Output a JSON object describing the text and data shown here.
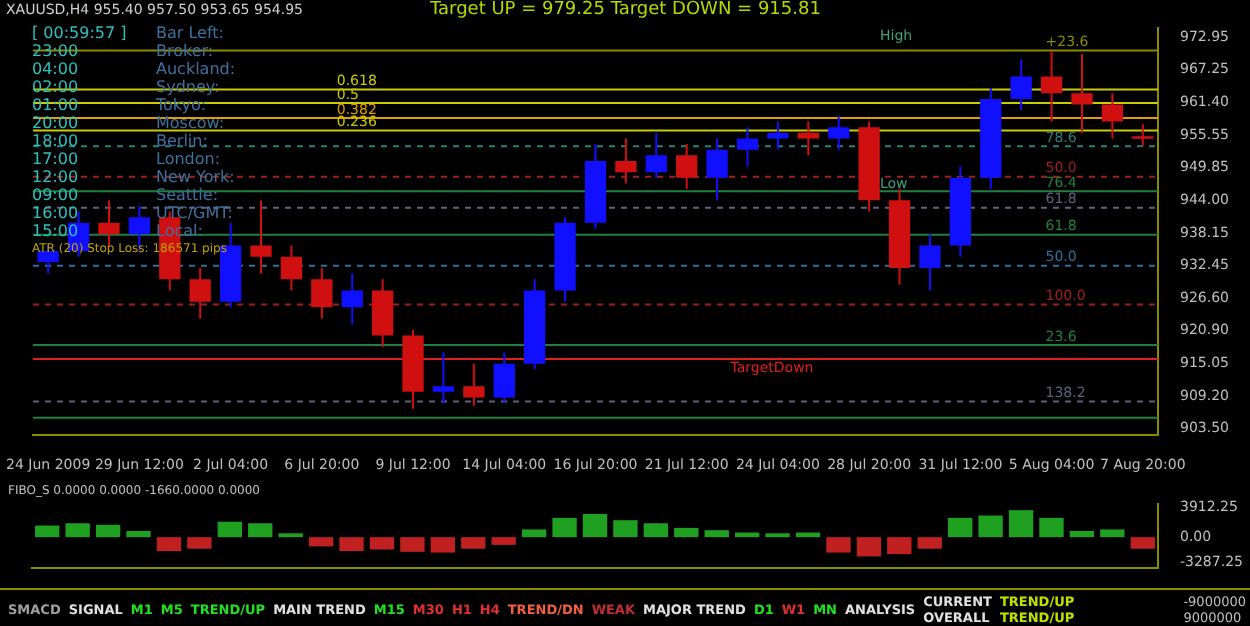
{
  "chart_data": [
    {
      "type": "candlestick",
      "title": "Target UP = 979.25     Target DOWN = 915.81",
      "subtitle": "XAUUSD,H4  955.40 957.50 953.65 954.95",
      "categories": [
        "24 Jun 2009",
        null,
        null,
        "29 Jun 12:00",
        null,
        null,
        "2 Jul 04:00",
        null,
        null,
        "6 Jul 20:00",
        null,
        null,
        "9 Jul 12:00",
        null,
        null,
        "14 Jul 04:00",
        null,
        null,
        "16 Jul 20:00",
        null,
        null,
        "21 Jul 12:00",
        null,
        null,
        "24 Jul 04:00",
        null,
        null,
        "28 Jul 20:00",
        null,
        null,
        "31 Jul 12:00",
        null,
        null,
        "5 Aug 04:00",
        null,
        null,
        "7 Aug 20:00"
      ],
      "ohlc": [
        [
          933,
          936,
          931,
          935
        ],
        [
          935,
          942,
          934,
          940
        ],
        [
          940,
          944,
          936,
          938
        ],
        [
          938,
          943,
          935,
          941
        ],
        [
          941,
          942,
          928,
          930
        ],
        [
          930,
          932,
          923,
          926
        ],
        [
          926,
          940,
          925,
          936
        ],
        [
          936,
          944,
          931,
          934
        ],
        [
          934,
          936,
          928,
          930
        ],
        [
          930,
          932,
          923,
          925
        ],
        [
          925,
          931,
          922,
          928
        ],
        [
          928,
          930,
          918,
          920
        ],
        [
          920,
          921,
          907,
          910
        ],
        [
          910,
          917,
          908,
          911
        ],
        [
          911,
          915,
          907.5,
          909
        ],
        [
          909,
          917,
          908,
          915
        ],
        [
          915,
          930,
          914,
          928
        ],
        [
          928,
          941,
          926,
          940
        ],
        [
          940,
          954,
          939,
          951
        ],
        [
          951,
          955,
          947,
          949
        ],
        [
          949,
          956,
          948,
          952
        ],
        [
          952,
          954,
          946,
          948
        ],
        [
          948,
          955,
          944,
          953
        ],
        [
          953,
          957,
          950,
          955
        ],
        [
          955,
          958,
          953,
          956
        ],
        [
          956,
          958,
          952,
          955
        ],
        [
          955,
          959,
          953,
          957
        ],
        [
          957,
          958,
          942,
          944
        ],
        [
          944,
          946,
          929,
          932
        ],
        [
          932,
          938,
          928,
          936
        ],
        [
          936,
          950,
          934,
          948
        ],
        [
          948,
          964,
          946,
          962
        ],
        [
          962,
          969,
          960,
          966
        ],
        [
          966,
          970.5,
          958,
          963
        ],
        [
          963,
          970,
          956,
          961
        ],
        [
          961,
          963,
          955,
          958
        ],
        [
          955.4,
          957.5,
          953.65,
          954.95
        ]
      ],
      "colors": [
        "#1010ff",
        "#1010ff",
        "#d01010",
        "#1010ff",
        "#d01010",
        "#d01010",
        "#1010ff",
        "#d01010",
        "#d01010",
        "#d01010",
        "#1010ff",
        "#d01010",
        "#d01010",
        "#1010ff",
        "#d01010",
        "#1010ff",
        "#1010ff",
        "#1010ff",
        "#1010ff",
        "#d01010",
        "#1010ff",
        "#d01010",
        "#1010ff",
        "#1010ff",
        "#1010ff",
        "#d01010",
        "#1010ff",
        "#d01010",
        "#d01010",
        "#1010ff",
        "#1010ff",
        "#1010ff",
        "#1010ff",
        "#d01010",
        "#d01010",
        "#d01010",
        "#d01010"
      ],
      "ylim": [
        902.3,
        974.6
      ],
      "yticks": [
        {
          "value": 903.5,
          "label": "903.50"
        },
        {
          "value": 909.2,
          "label": "909.20"
        },
        {
          "value": 915.05,
          "label": "915.05"
        },
        {
          "value": 920.9,
          "label": "920.90"
        },
        {
          "value": 926.6,
          "label": "926.60"
        },
        {
          "value": 932.45,
          "label": "932.45"
        },
        {
          "value": 938.15,
          "label": "938.15"
        },
        {
          "value": 944,
          "label": "944.00"
        },
        {
          "value": 949.85,
          "label": "949.85"
        },
        {
          "value": 955.55,
          "label": "955.55"
        },
        {
          "value": 961.4,
          "label": "961.40"
        },
        {
          "value": 967.25,
          "label": "967.25"
        },
        {
          "value": 972.95,
          "label": "972.95"
        }
      ],
      "ref_lines": [
        {
          "axis": "y",
          "value": 970.6,
          "color": "#8b8b00",
          "line_style": "solid"
        },
        {
          "axis": "y",
          "value": 963.7,
          "color": "#cccc00",
          "line_style": "solid"
        },
        {
          "axis": "y",
          "value": 961.3,
          "color": "#cccc00",
          "line_style": "solid"
        },
        {
          "axis": "y",
          "value": 958.6,
          "color": "#e0a000",
          "line_style": "solid"
        },
        {
          "axis": "y",
          "value": 956.4,
          "color": "#cccc00",
          "line_style": "solid"
        },
        {
          "axis": "y",
          "value": 953.6,
          "color": "#2f7f7f",
          "line_style": "dashed"
        },
        {
          "axis": "y",
          "value": 948.2,
          "color": "#a02020",
          "line_style": "dashed"
        },
        {
          "axis": "y",
          "value": 945.6,
          "color": "#208040",
          "line_style": "solid"
        },
        {
          "axis": "y",
          "value": 942.7,
          "color": "#606080",
          "line_style": "dashed"
        },
        {
          "axis": "y",
          "value": 937.9,
          "color": "#208040",
          "line_style": "solid"
        },
        {
          "axis": "y",
          "value": 932.4,
          "color": "#3070a0",
          "line_style": "dashed"
        },
        {
          "axis": "y",
          "value": 925.5,
          "color": "#a02020",
          "line_style": "dashed"
        },
        {
          "axis": "y",
          "value": 918.3,
          "color": "#208040",
          "line_style": "solid"
        },
        {
          "axis": "y",
          "value": 915.81,
          "label": "TargetDown",
          "color": "#e02020",
          "line_style": "solid"
        },
        {
          "axis": "y",
          "value": 908.3,
          "color": "#606080",
          "line_style": "dashed"
        },
        {
          "axis": "y",
          "value": 905.4,
          "color": "#208040",
          "line_style": "solid"
        }
      ],
      "annotations": [
        "[ 00:59:57 ]",
        "Bar Left:",
        "23:00",
        "Broker:",
        "04:00",
        "Auckland:",
        "02:00",
        "Sydney:",
        "01:00",
        "Tokyo:",
        "20:00",
        "Moscow:",
        "18:00",
        "Berlin:",
        "17:00",
        "London:",
        "12:00",
        "New York:",
        "09:00",
        "Seattle:",
        "16:00",
        "UTC/GMT:",
        "15:00",
        "Local:",
        "ATR (20)   Stop Loss:   186571 pips",
        "High",
        "Low",
        {
          "text": "+23.6",
          "y": 970.6
        },
        {
          "text": "0.618",
          "y": 963.7
        },
        {
          "text": "0.5",
          "y": 961.3
        },
        {
          "text": "0.382",
          "y": 958.6
        },
        {
          "text": "0.236",
          "y": 956.4
        },
        {
          "text": "78.6",
          "y": 953.6
        },
        {
          "text": "50.0",
          "y": 948.2
        },
        {
          "text": "76.4",
          "y": 945.6
        },
        {
          "text": "61.8",
          "y": 942.7
        },
        {
          "text": "61.8",
          "y": 937.9
        },
        {
          "text": "50.0",
          "y": 932.4
        },
        {
          "text": "100.0",
          "y": 925.5
        },
        {
          "text": "23.6",
          "y": 918.3
        },
        {
          "text": "138.2",
          "y": 908.3
        }
      ]
    },
    {
      "type": "bar",
      "title": "FIBO_S 0.0000 0.0000 -1660.0000 0.0000",
      "tick_labels": "y",
      "categories": [
        null,
        null,
        null,
        null,
        null,
        null,
        null,
        null,
        null,
        null,
        null,
        null,
        null,
        null,
        null,
        null,
        null,
        null,
        null,
        null,
        null,
        null,
        null,
        null,
        null,
        null,
        null,
        null,
        null,
        null,
        null,
        null,
        null,
        null,
        null,
        null,
        null
      ],
      "values": [
        1500,
        1800,
        1600,
        800,
        -1800,
        -1500,
        2000,
        1800,
        500,
        -1200,
        -1800,
        -1600,
        -1900,
        -2000,
        -1500,
        -1000,
        1000,
        2500,
        3000,
        2200,
        1800,
        1200,
        900,
        600,
        500,
        600,
        -2000,
        -2500,
        -2200,
        -1500,
        2500,
        2800,
        3500,
        2500,
        800,
        1000,
        -1500
      ],
      "colors": [
        "#20a020",
        "#20a020",
        "#20a020",
        "#20a020",
        "#c02020",
        "#c02020",
        "#20a020",
        "#20a020",
        "#20a020",
        "#c02020",
        "#c02020",
        "#c02020",
        "#c02020",
        "#c02020",
        "#c02020",
        "#c02020",
        "#20a020",
        "#20a020",
        "#20a020",
        "#20a020",
        "#20a020",
        "#20a020",
        "#20a020",
        "#20a020",
        "#20a020",
        "#20a020",
        "#c02020",
        "#c02020",
        "#c02020",
        "#c02020",
        "#20a020",
        "#20a020",
        "#20a020",
        "#20a020",
        "#20a020",
        "#20a020",
        "#c02020"
      ],
      "ylim": [
        -4000,
        4300
      ],
      "yticks": [
        -3287.25,
        {
          "value": 0,
          "label": "0.00"
        },
        3912.25
      ]
    },
    {
      "type": "other",
      "annotations": [
        "SMACD",
        "SIGNAL",
        "M1",
        "M5",
        "TREND/UP",
        "MAIN TREND",
        "M15",
        "M30",
        "H1",
        "H4",
        "TREND/DN",
        "WEAK",
        "MAJOR TREND",
        "D1",
        "W1",
        "MN",
        "ANALYSIS",
        "CURRENT",
        "TREND/UP",
        "OVERALL",
        "TREND/UP",
        "-9000000",
        "9000000"
      ],
      "colors": [
        "#a0a0a0",
        "#e0e0e0",
        "#20e020",
        "#20e020",
        "#20e020",
        "#e0e0e0",
        "#20e020",
        "#e03030",
        "#e03030",
        "#e03030",
        "#f06040",
        "#c03030",
        "#e0e0e0",
        "#20e020",
        "#e03030",
        "#20e020",
        "#e0e0e0",
        "#e0e0e0",
        "#c0e000",
        "#e0e0e0",
        "#c0e000",
        "#c0c0c0",
        "#c0c0c0"
      ]
    }
  ]
}
